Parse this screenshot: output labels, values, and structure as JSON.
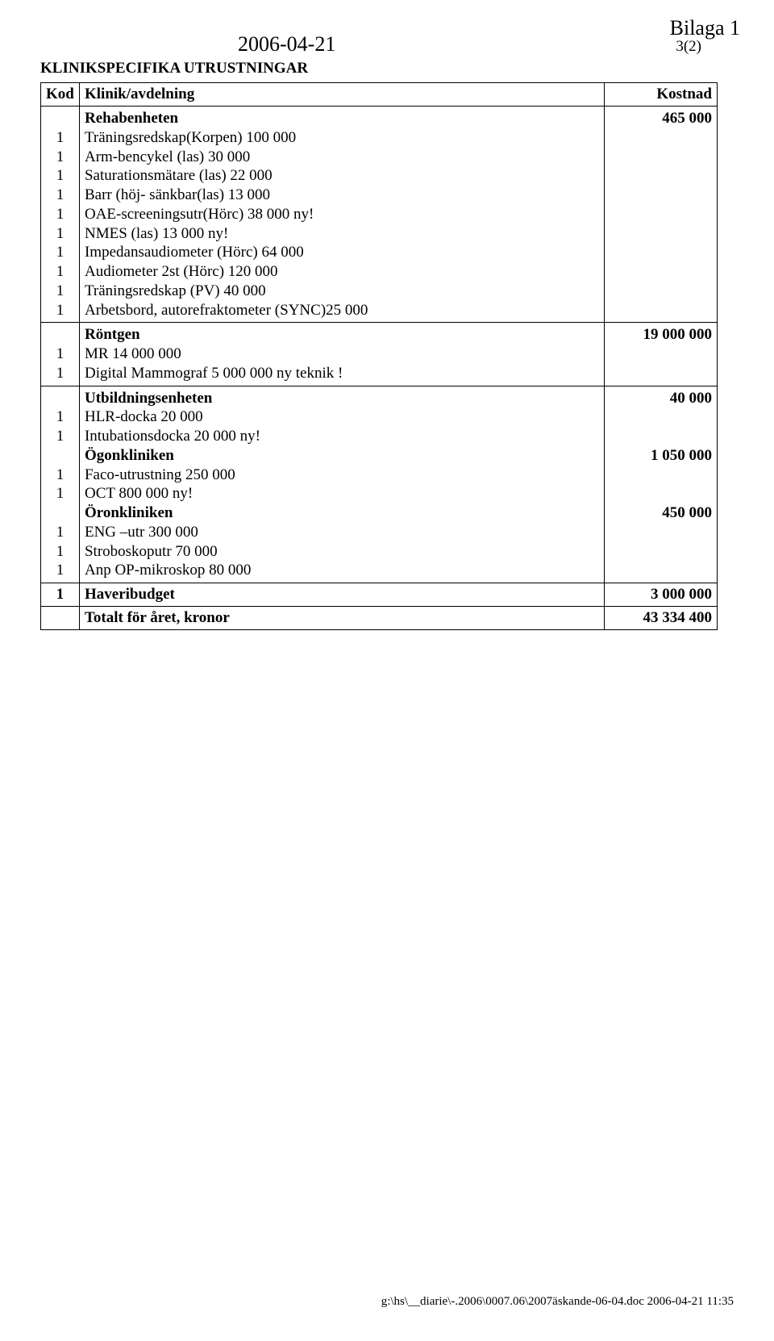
{
  "header": {
    "bilaga": "Bilaga 1",
    "date": "2006-04-21",
    "pagenum": "3(2)",
    "title": "KLINIKSPECIFIKA UTRUSTNINGAR"
  },
  "columns": {
    "kod": "Kod",
    "klinik": "Klinik/avdelning",
    "kostnad": "Kostnad"
  },
  "sections": [
    {
      "name": "Rehabenheten",
      "cost": "465 000",
      "items": [
        {
          "kod": "1",
          "text": "Träningsredskap(Korpen) 100 000"
        },
        {
          "kod": "1",
          "text": "Arm-bencykel (las) 30 000"
        },
        {
          "kod": "1",
          "text": "Saturationsmätare (las) 22 000"
        },
        {
          "kod": "1",
          "text": "Barr (höj- sänkbar(las) 13 000"
        },
        {
          "kod": "1",
          "text": "OAE-screeningsutr(Hörc) 38 000 ny!"
        },
        {
          "kod": "1",
          "text": "NMES (las) 13 000 ny!"
        },
        {
          "kod": "1",
          "text": "Impedansaudiometer (Hörc) 64 000"
        },
        {
          "kod": "1",
          "text": "Audiometer 2st (Hörc) 120 000"
        },
        {
          "kod": "1",
          "text": "Träningsredskap (PV) 40 000"
        },
        {
          "kod": "1",
          "text": "Arbetsbord, autorefraktometer (SYNC)25 000"
        }
      ]
    },
    {
      "name": "Röntgen",
      "cost": "19 000 000",
      "items": [
        {
          "kod": "1",
          "text": "MR 14 000 000"
        },
        {
          "kod": "1",
          "text": "Digital Mammograf  5 000 000 ny teknik !"
        }
      ]
    },
    {
      "name": "Utbildningsenheten",
      "cost": "40 000",
      "items": [
        {
          "kod": "1",
          "text": "HLR-docka 20 000"
        },
        {
          "kod": "1",
          "text": "Intubationsdocka 20 000 ny!"
        }
      ]
    },
    {
      "name": "Ögonkliniken",
      "cost": "1 050 000",
      "items": [
        {
          "kod": "1",
          "text": "Faco-utrustning 250 000"
        },
        {
          "kod": "1",
          "text": "OCT 800 000 ny!"
        }
      ]
    },
    {
      "name": "Öronkliniken",
      "cost": "450 000",
      "items": [
        {
          "kod": "1",
          "text": "ENG –utr 300 000"
        },
        {
          "kod": "1",
          "text": "Stroboskoputr 70 000"
        },
        {
          "kod": "1",
          "text": "Anp OP-mikroskop 80 000"
        }
      ]
    }
  ],
  "haveribudget": {
    "kod": "1",
    "label": "Haveribudget",
    "cost": "3 000 000"
  },
  "total": {
    "label": "Totalt för året, kronor",
    "cost": "43 334 400"
  },
  "footer": "g:\\hs\\__diarie\\-.2006\\0007.06\\2007äskande-06-04.doc  2006-04-21 11:35"
}
